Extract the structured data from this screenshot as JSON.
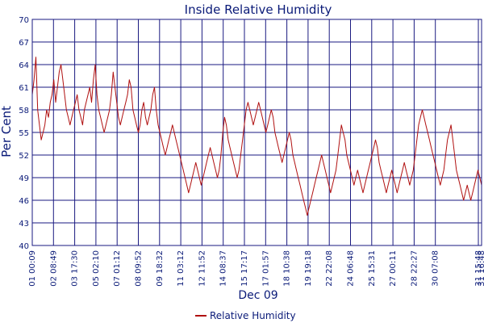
{
  "chart_data": {
    "type": "line",
    "title": "Inside Relative Humidity",
    "xlabel": "Dec 09",
    "ylabel": "Per Cent",
    "ylim": [
      40,
      70
    ],
    "yticks": [
      40,
      43,
      46,
      49,
      52,
      55,
      58,
      61,
      64,
      67,
      70
    ],
    "x_tick_labels": [
      "01 00:09",
      "02 08:49",
      "03 17:30",
      "05 02:10",
      "07 01:12",
      "08 09:52",
      "09 18:32",
      "11 03:12",
      "12 11:52",
      "14 08:37",
      "15 17:17",
      "17 01:57",
      "18 10:38",
      "19 19:18",
      "22 22:08",
      "24 06:48",
      "25 15:31",
      "27 00:11",
      "28 22:27",
      "30 07:08",
      "31 15:48",
      "31 16:48"
    ],
    "grid": true,
    "legend_position": "bottom-center",
    "colors": {
      "series": "#b01010",
      "grid": "#1a1a80",
      "text": "#0a1a78"
    },
    "series": [
      {
        "name": "Relative Humidity",
        "values": [
          60,
          62,
          65,
          58,
          56,
          54,
          55,
          56,
          58,
          57,
          59,
          60,
          62,
          59,
          61,
          63,
          64,
          62,
          60,
          58,
          57,
          56,
          57,
          58,
          59,
          60,
          58,
          57,
          56,
          58,
          59,
          60,
          61,
          59,
          62,
          64,
          60,
          58,
          57,
          56,
          55,
          56,
          57,
          58,
          60,
          63,
          61,
          59,
          57,
          56,
          57,
          58,
          59,
          60,
          62,
          61,
          58,
          57,
          56,
          55,
          56,
          58,
          59,
          57,
          56,
          57,
          58,
          60,
          61,
          58,
          56,
          55,
          54,
          53,
          52,
          53,
          54,
          55,
          56,
          55,
          54,
          53,
          52,
          51,
          50,
          49,
          48,
          47,
          48,
          49,
          50,
          51,
          50,
          49,
          48,
          49,
          50,
          51,
          52,
          53,
          52,
          51,
          50,
          49,
          50,
          52,
          55,
          57,
          56,
          54,
          53,
          52,
          51,
          50,
          49,
          50,
          52,
          54,
          56,
          58,
          59,
          58,
          57,
          56,
          57,
          58,
          59,
          58,
          57,
          56,
          55,
          56,
          57,
          58,
          57,
          55,
          54,
          53,
          52,
          51,
          52,
          53,
          54,
          55,
          54,
          52,
          51,
          50,
          49,
          48,
          47,
          46,
          45,
          44,
          45,
          46,
          47,
          48,
          49,
          50,
          51,
          52,
          51,
          50,
          49,
          48,
          47,
          48,
          49,
          50,
          52,
          54,
          56,
          55,
          54,
          52,
          51,
          50,
          49,
          48,
          49,
          50,
          49,
          48,
          47,
          48,
          49,
          50,
          51,
          52,
          53,
          54,
          53,
          51,
          50,
          49,
          48,
          47,
          48,
          49,
          50,
          49,
          48,
          47,
          48,
          49,
          50,
          51,
          50,
          49,
          48,
          49,
          50,
          52,
          54,
          56,
          57,
          58,
          57,
          56,
          55,
          54,
          53,
          52,
          51,
          50,
          49,
          48,
          49,
          50,
          52,
          54,
          55,
          56,
          54,
          52,
          50,
          49,
          48,
          47,
          46,
          47,
          48,
          47,
          46,
          47,
          48,
          49,
          50,
          49,
          48
        ]
      }
    ]
  }
}
